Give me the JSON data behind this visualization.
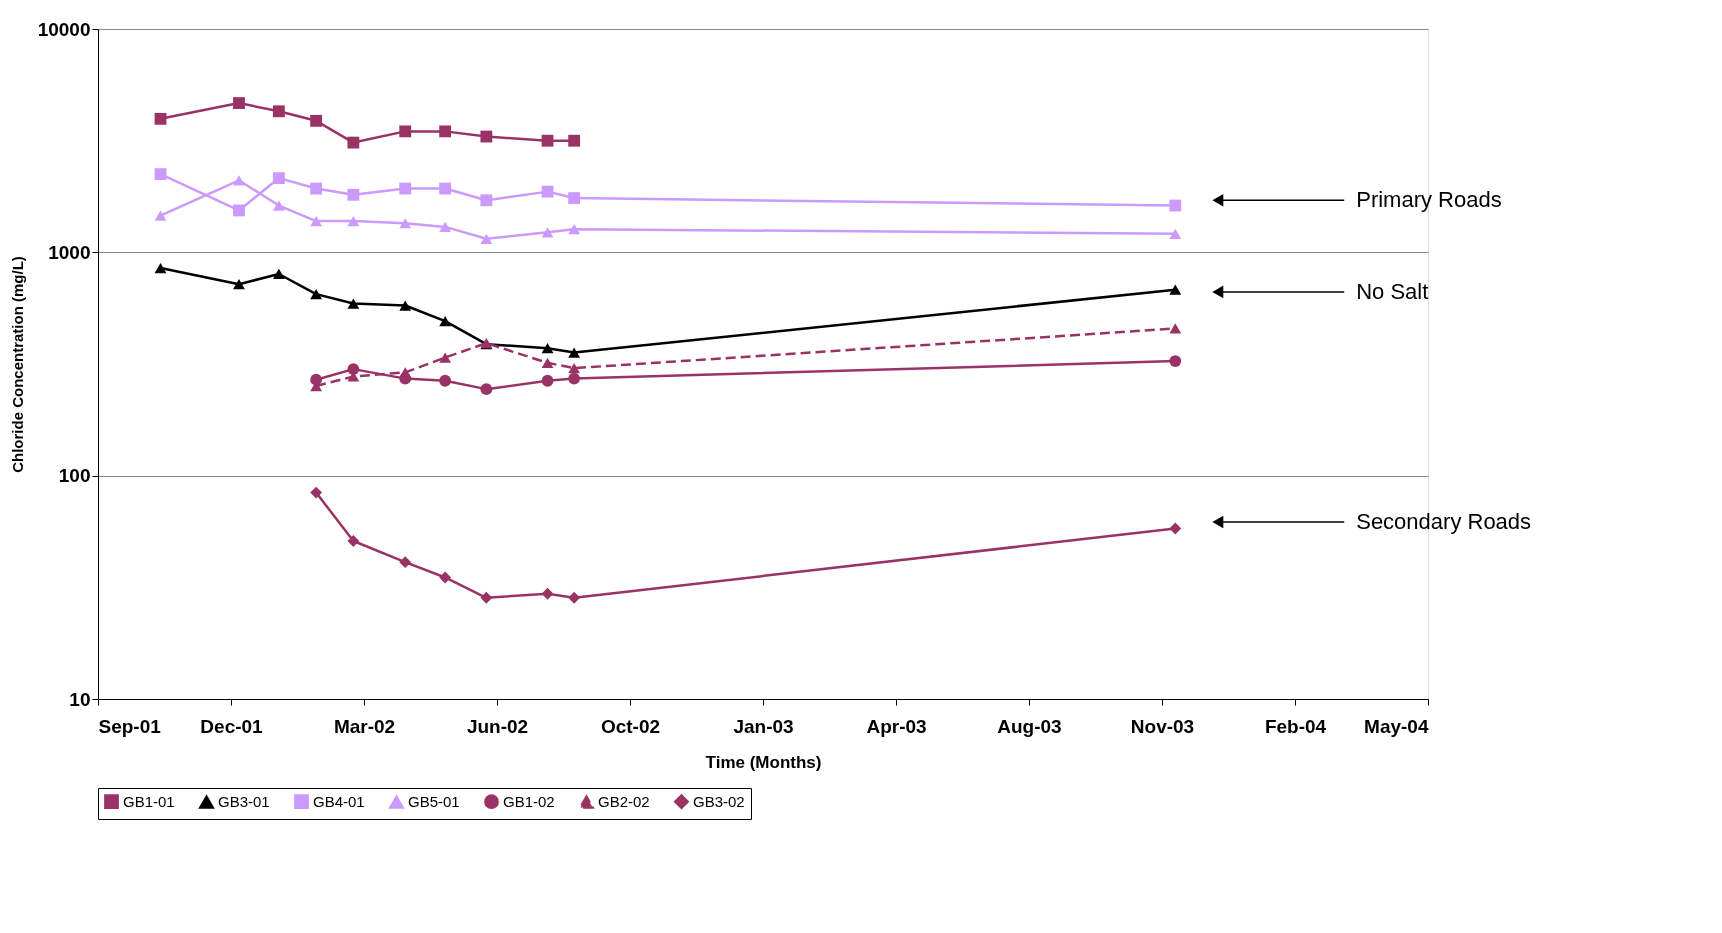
{
  "chart_data": {
    "type": "line",
    "xlabel": "Time (Months)",
    "ylabel": "Chloride Concentration (mg/L)",
    "log": "y",
    "grid": "y",
    "legend": "bottom",
    "ylim": [
      10,
      10000
    ],
    "yticks": [
      10,
      100,
      1000,
      10000
    ],
    "xlim": [
      "2001-09-01",
      "2004-05-28"
    ],
    "xticks": [
      {
        "value": "2001-09-01",
        "label": "Sep-01"
      },
      {
        "value": "2001-12-10",
        "label": "Dec-01"
      },
      {
        "value": "2002-03-20",
        "label": "Mar-02"
      },
      {
        "value": "2002-06-28",
        "label": "Jun-02"
      },
      {
        "value": "2002-10-06",
        "label": "Oct-02"
      },
      {
        "value": "2003-01-14",
        "label": "Jan-03"
      },
      {
        "value": "2003-04-24",
        "label": "Apr-03"
      },
      {
        "value": "2003-08-02",
        "label": "Aug-03"
      },
      {
        "value": "2003-11-10",
        "label": "Nov-03"
      },
      {
        "value": "2004-02-18",
        "label": "Feb-04"
      },
      {
        "value": "2004-05-28",
        "label": "May-04"
      }
    ],
    "series": [
      {
        "name": "GB1-01",
        "color": "#993366",
        "marker": "square",
        "line_style": "solid",
        "x": [
          "2001-10-18",
          "2001-12-16",
          "2002-01-15",
          "2002-02-12",
          "2002-03-12",
          "2002-04-20",
          "2002-05-20",
          "2002-06-20",
          "2002-08-05",
          "2002-08-25"
        ],
        "values": [
          3960,
          4660,
          4280,
          3880,
          3100,
          3480,
          3480,
          3300,
          3160,
          3160
        ]
      },
      {
        "name": "GB3-01",
        "color": "#000000",
        "marker": "triangle",
        "line_style": "solid",
        "x": [
          "2001-10-18",
          "2001-12-16",
          "2002-01-15",
          "2002-02-12",
          "2002-03-12",
          "2002-04-20",
          "2002-05-20",
          "2002-06-20",
          "2002-08-05",
          "2002-08-25",
          "2003-11-20"
        ],
        "values": [
          850,
          720,
          800,
          650,
          590,
          578,
          492,
          388,
          372,
          356,
          680
        ]
      },
      {
        "name": "GB4-01",
        "color": "#cc99ff",
        "marker": "square",
        "line_style": "solid",
        "x": [
          "2001-10-18",
          "2001-12-16",
          "2002-01-15",
          "2002-02-12",
          "2002-03-12",
          "2002-04-20",
          "2002-05-20",
          "2002-06-20",
          "2002-08-05",
          "2002-08-25",
          "2003-11-20"
        ],
        "values": [
          2240,
          1540,
          2150,
          1930,
          1810,
          1930,
          1930,
          1710,
          1870,
          1750,
          1620
        ]
      },
      {
        "name": "GB5-01",
        "color": "#cc99ff",
        "marker": "triangle",
        "line_style": "solid",
        "x": [
          "2001-10-18",
          "2001-12-16",
          "2002-01-15",
          "2002-02-12",
          "2002-03-12",
          "2002-04-20",
          "2002-05-20",
          "2002-06-20",
          "2002-08-05",
          "2002-08-25",
          "2003-11-20"
        ],
        "values": [
          1460,
          2100,
          1620,
          1380,
          1380,
          1350,
          1300,
          1150,
          1230,
          1270,
          1210
        ]
      },
      {
        "name": "GB1-02",
        "color": "#993366",
        "marker": "circle",
        "line_style": "solid",
        "x": [
          "2002-02-12",
          "2002-03-12",
          "2002-04-20",
          "2002-05-20",
          "2002-06-20",
          "2002-08-05",
          "2002-08-25",
          "2003-11-20"
        ],
        "values": [
          269,
          300,
          272,
          266,
          244,
          266,
          272,
          326
        ]
      },
      {
        "name": "GB2-02",
        "color": "#993366",
        "marker": "triangle",
        "line_style": "dashed",
        "x": [
          "2002-02-12",
          "2002-03-12",
          "2002-04-20",
          "2002-05-20",
          "2002-06-20",
          "2002-08-05",
          "2002-08-25",
          "2003-11-20"
        ],
        "values": [
          252,
          278,
          290,
          338,
          392,
          320,
          303,
          456
        ]
      },
      {
        "name": "GB3-02",
        "color": "#993366",
        "marker": "diamond",
        "line_style": "solid",
        "x": [
          "2002-02-12",
          "2002-03-12",
          "2002-04-20",
          "2002-05-20",
          "2002-06-20",
          "2002-08-05",
          "2002-08-25",
          "2003-11-20"
        ],
        "values": [
          84,
          51,
          41,
          35,
          28.4,
          29.6,
          28.4,
          58
        ]
      }
    ],
    "annotations": [
      {
        "text": "Primary Roads",
        "x": "2003-12-22",
        "y": 1710
      },
      {
        "text": "No Salt",
        "x": "2003-12-22",
        "y": 665
      },
      {
        "text": "Secondary Roads",
        "x": "2003-12-22",
        "y": 62
      }
    ]
  }
}
